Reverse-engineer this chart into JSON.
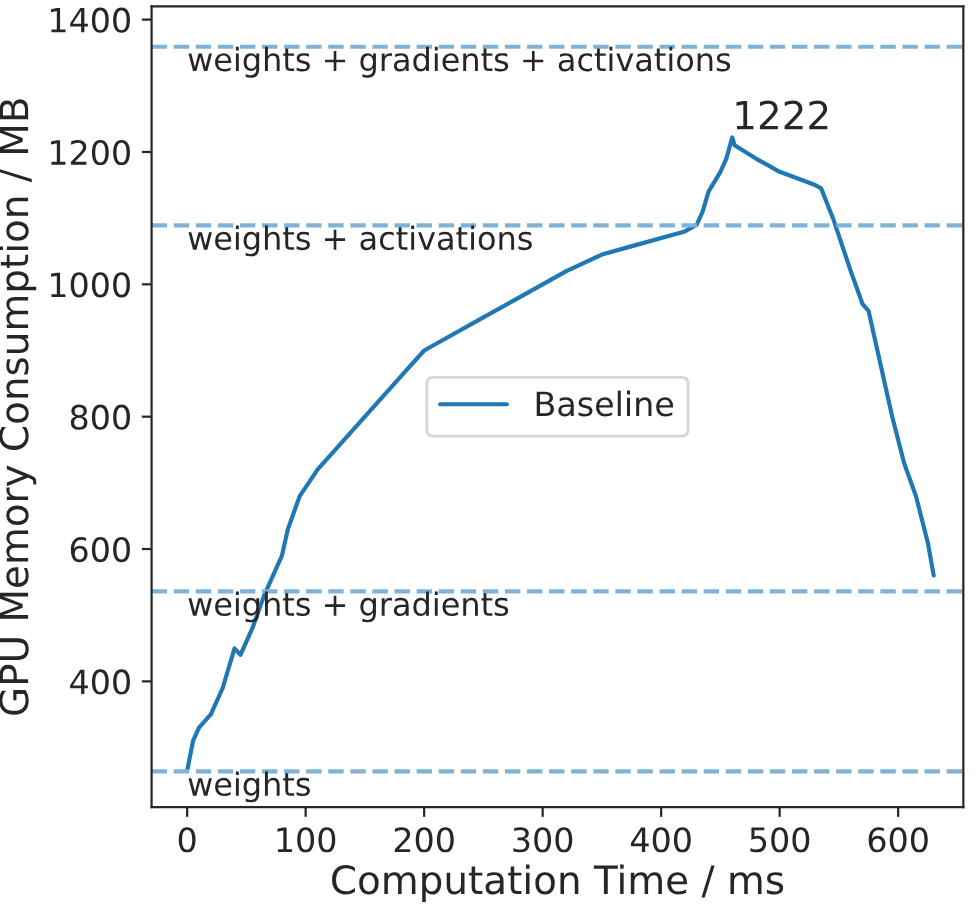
{
  "chart_data": {
    "type": "line",
    "xlabel": "Computation Time / ms",
    "ylabel": "GPU Memory Consumption / MB",
    "xlim": [
      -30,
      655
    ],
    "ylim": [
      210,
      1420
    ],
    "xticks": [
      0,
      100,
      200,
      300,
      400,
      500,
      600
    ],
    "yticks": [
      400,
      600,
      800,
      1000,
      1200,
      1400
    ],
    "grid": false,
    "legend": "center",
    "line_style": "solid",
    "marker": "none",
    "series": [
      {
        "name": "Baseline",
        "color": "#1f77b4",
        "x": [
          0,
          5,
          10,
          20,
          30,
          35,
          40,
          45,
          55,
          65,
          80,
          85,
          95,
          110,
          120,
          140,
          160,
          180,
          200,
          220,
          250,
          280,
          320,
          350,
          380,
          420,
          430,
          435,
          440,
          450,
          455,
          460,
          462,
          480,
          500,
          530,
          535,
          545,
          560,
          570,
          575,
          585,
          595,
          605,
          615,
          625,
          630
        ],
        "values": [
          265,
          310,
          330,
          350,
          390,
          420,
          450,
          440,
          480,
          530,
          590,
          630,
          680,
          720,
          740,
          780,
          820,
          860,
          900,
          920,
          950,
          980,
          1020,
          1045,
          1060,
          1080,
          1090,
          1110,
          1140,
          1170,
          1190,
          1222,
          1210,
          1190,
          1170,
          1150,
          1145,
          1100,
          1020,
          970,
          960,
          880,
          800,
          730,
          680,
          610,
          560
        ]
      }
    ],
    "ref_lines": [
      {
        "axis": "y",
        "value": 1359,
        "label": "weights + gradients + activations",
        "color": "#7fb2d9",
        "line_style": "dashed"
      },
      {
        "axis": "y",
        "value": 1089,
        "label": "weights + activations",
        "color": "#7fb2d9",
        "line_style": "dashed"
      },
      {
        "axis": "y",
        "value": 536,
        "label": "weights + gradients",
        "color": "#7fb2d9",
        "line_style": "dashed"
      },
      {
        "axis": "y",
        "value": 264,
        "label": "weights",
        "color": "#7fb2d9",
        "line_style": "dashed"
      }
    ],
    "annotations": [
      {
        "text": "1222",
        "x": 460,
        "y": 1222
      }
    ]
  }
}
